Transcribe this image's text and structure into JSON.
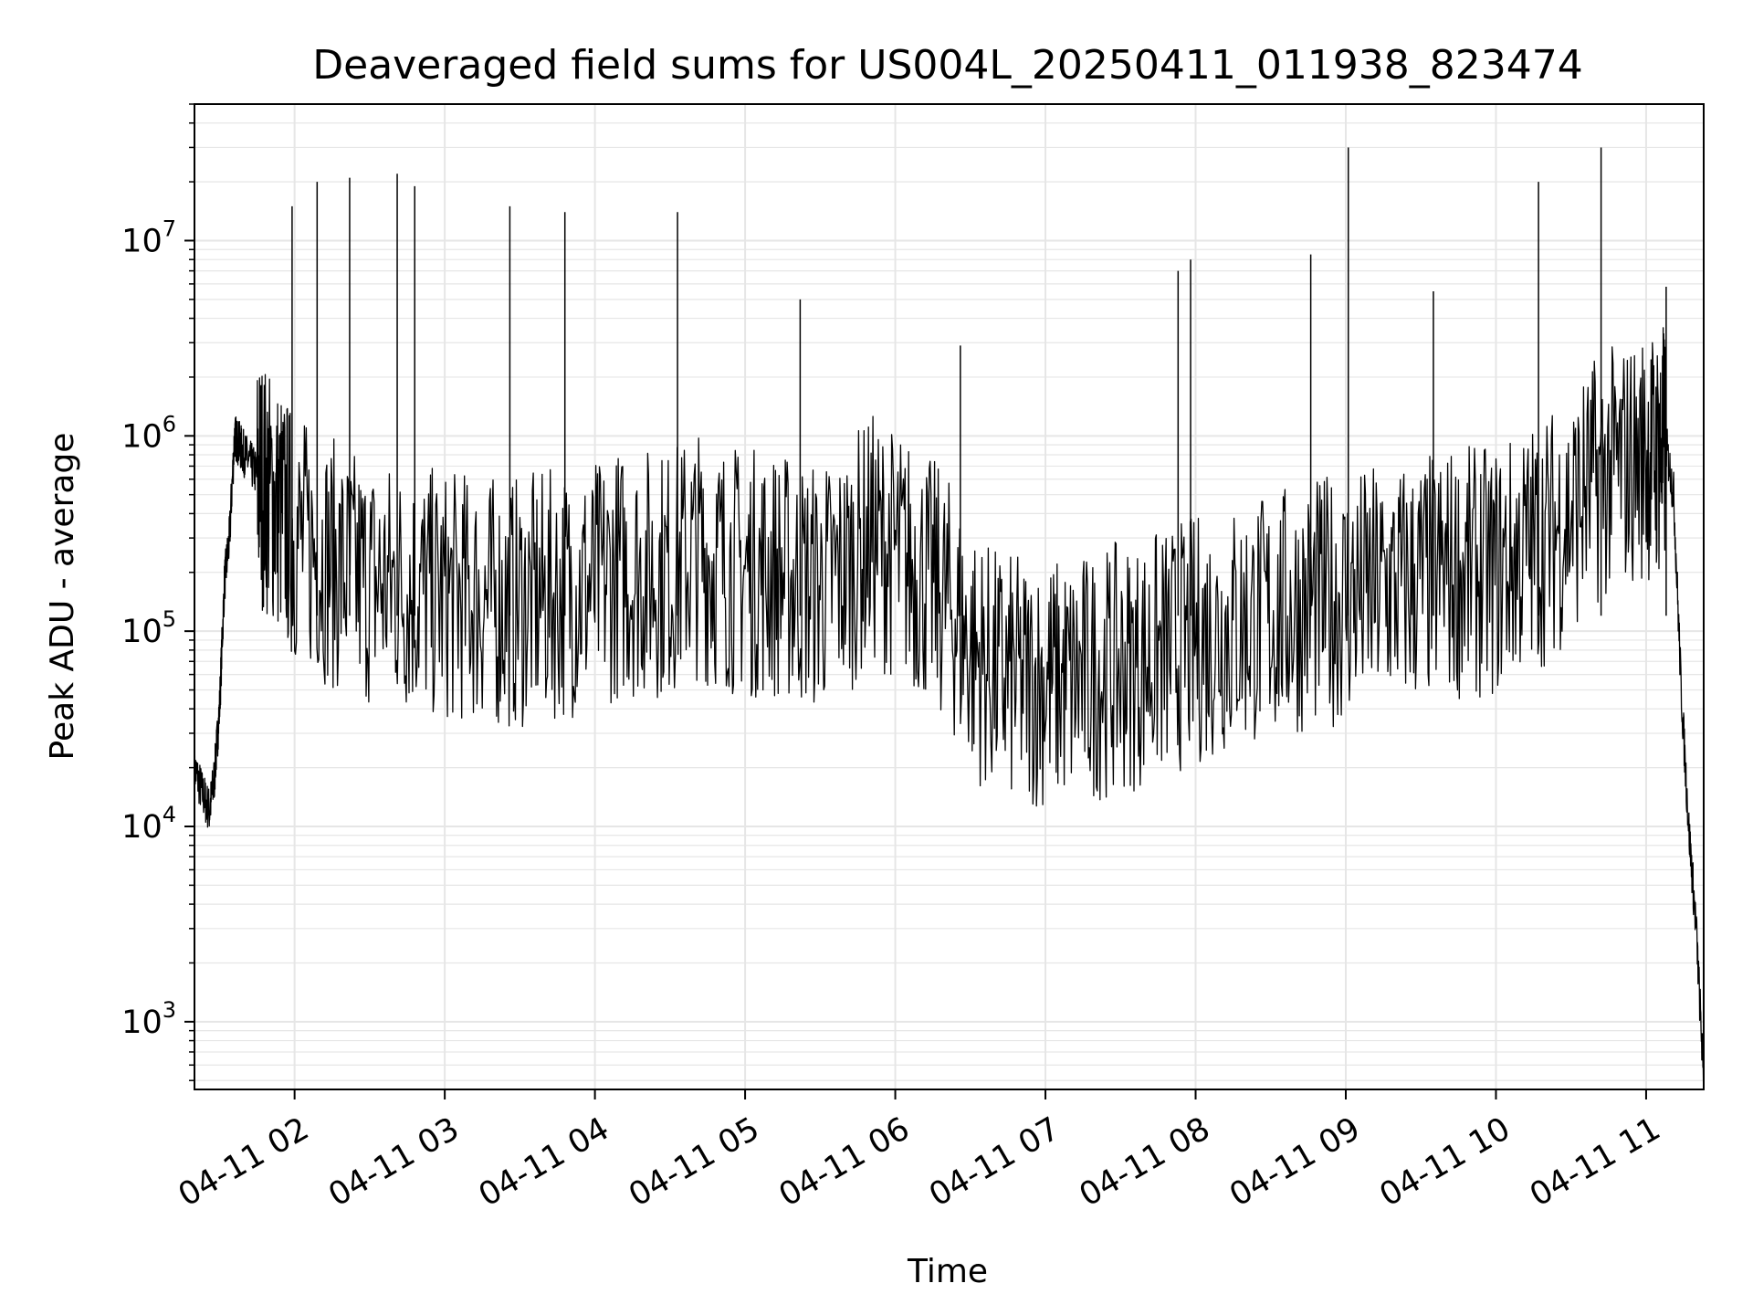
{
  "chart_data": {
    "type": "line",
    "title": "Deaveraged field sums for US004L_20250411_011938_823474",
    "xlabel": "Time",
    "ylabel": "Peak ADU - average",
    "y_scale": "log",
    "grid": true,
    "line_color": "#000000",
    "grid_color": "#e6e6e6",
    "xlim": [
      "2025-04-11T01:20",
      "2025-04-11T11:23"
    ],
    "ylim": [
      450,
      50000000
    ],
    "x_ticks": [
      {
        "value": "2025-04-11T02:00",
        "label": "04-11 02"
      },
      {
        "value": "2025-04-11T03:00",
        "label": "04-11 03"
      },
      {
        "value": "2025-04-11T04:00",
        "label": "04-11 04"
      },
      {
        "value": "2025-04-11T05:00",
        "label": "04-11 05"
      },
      {
        "value": "2025-04-11T06:00",
        "label": "04-11 06"
      },
      {
        "value": "2025-04-11T07:00",
        "label": "04-11 07"
      },
      {
        "value": "2025-04-11T08:00",
        "label": "04-11 08"
      },
      {
        "value": "2025-04-11T09:00",
        "label": "04-11 09"
      },
      {
        "value": "2025-04-11T10:00",
        "label": "04-11 10"
      },
      {
        "value": "2025-04-11T11:00",
        "label": "04-11 11"
      }
    ],
    "y_ticks": [
      {
        "value": 1000,
        "base": "10",
        "exp": "3"
      },
      {
        "value": 10000,
        "base": "10",
        "exp": "4"
      },
      {
        "value": 100000,
        "base": "10",
        "exp": "5"
      },
      {
        "value": 1000000,
        "base": "10",
        "exp": "6"
      },
      {
        "value": 10000000,
        "base": "10",
        "exp": "7"
      }
    ],
    "series": [
      {
        "x": [
          "2025-04-11T01:20",
          "2025-04-11T01:23",
          "2025-04-11T01:26",
          "2025-04-11T01:28",
          "2025-04-11T01:30",
          "2025-04-11T01:32",
          "2025-04-11T01:34",
          "2025-04-11T01:36",
          "2025-04-11T01:38",
          "2025-04-11T01:40",
          "2025-04-11T01:43",
          "2025-04-11T01:46",
          "2025-04-11T01:50",
          "2025-04-11T01:55",
          "2025-04-11T02:00",
          "2025-04-11T02:10",
          "2025-04-11T02:20",
          "2025-04-11T02:30",
          "2025-04-11T02:40",
          "2025-04-11T02:50",
          "2025-04-11T03:00",
          "2025-04-11T03:10",
          "2025-04-11T03:20",
          "2025-04-11T03:30",
          "2025-04-11T03:40",
          "2025-04-11T03:50",
          "2025-04-11T04:00",
          "2025-04-11T04:10",
          "2025-04-11T04:20",
          "2025-04-11T04:30",
          "2025-04-11T04:40",
          "2025-04-11T04:50",
          "2025-04-11T05:00",
          "2025-04-11T05:10",
          "2025-04-11T05:20",
          "2025-04-11T05:30",
          "2025-04-11T05:40",
          "2025-04-11T05:50",
          "2025-04-11T06:00",
          "2025-04-11T06:10",
          "2025-04-11T06:20",
          "2025-04-11T06:30",
          "2025-04-11T06:40",
          "2025-04-11T06:50",
          "2025-04-11T07:00",
          "2025-04-11T07:10",
          "2025-04-11T07:20",
          "2025-04-11T07:30",
          "2025-04-11T07:40",
          "2025-04-11T07:50",
          "2025-04-11T08:00",
          "2025-04-11T08:10",
          "2025-04-11T08:20",
          "2025-04-11T08:30",
          "2025-04-11T08:40",
          "2025-04-11T08:50",
          "2025-04-11T09:00",
          "2025-04-11T09:10",
          "2025-04-11T09:20",
          "2025-04-11T09:30",
          "2025-04-11T09:40",
          "2025-04-11T09:50",
          "2025-04-11T10:00",
          "2025-04-11T10:10",
          "2025-04-11T10:20",
          "2025-04-11T10:30",
          "2025-04-11T10:40",
          "2025-04-11T10:50",
          "2025-04-11T11:00",
          "2025-04-11T11:05",
          "2025-04-11T11:08",
          "2025-04-11T11:11",
          "2025-04-11T11:14",
          "2025-04-11T11:17",
          "2025-04-11T11:20",
          "2025-04-11T11:23"
        ],
        "y": [
          20000,
          15000,
          12000,
          18000,
          40000,
          180000,
          300000,
          1000000,
          900000,
          800000,
          700000,
          600000,
          500000,
          400000,
          300000,
          250000,
          200000,
          180000,
          170000,
          160000,
          150000,
          150000,
          140000,
          140000,
          150000,
          160000,
          170000,
          200000,
          200000,
          200000,
          250000,
          220000,
          200000,
          200000,
          180000,
          170000,
          200000,
          300000,
          250000,
          200000,
          150000,
          80000,
          60000,
          55000,
          55000,
          55000,
          60000,
          65000,
          70000,
          80000,
          90000,
          100000,
          110000,
          120000,
          130000,
          140000,
          150000,
          160000,
          170000,
          180000,
          200000,
          200000,
          200000,
          250000,
          300000,
          400000,
          600000,
          700000,
          800000,
          800000,
          900000,
          500000,
          50000,
          10000,
          3000,
          500
        ],
        "spikes": [
          {
            "x": "2025-04-11T01:59",
            "y": 15000000
          },
          {
            "x": "2025-04-11T02:09",
            "y": 20000000
          },
          {
            "x": "2025-04-11T02:22",
            "y": 21000000
          },
          {
            "x": "2025-04-11T02:41",
            "y": 22000000
          },
          {
            "x": "2025-04-11T02:48",
            "y": 19000000
          },
          {
            "x": "2025-04-11T03:26",
            "y": 15000000
          },
          {
            "x": "2025-04-11T03:48",
            "y": 14000000
          },
          {
            "x": "2025-04-11T04:33",
            "y": 14000000
          },
          {
            "x": "2025-04-11T05:22",
            "y": 5000000
          },
          {
            "x": "2025-04-11T06:26",
            "y": 2900000
          },
          {
            "x": "2025-04-11T07:53",
            "y": 7000000
          },
          {
            "x": "2025-04-11T07:58",
            "y": 8000000
          },
          {
            "x": "2025-04-11T08:46",
            "y": 8500000
          },
          {
            "x": "2025-04-11T09:01",
            "y": 30000000
          },
          {
            "x": "2025-04-11T09:35",
            "y": 5500000
          },
          {
            "x": "2025-04-11T10:17",
            "y": 20000000
          },
          {
            "x": "2025-04-11T10:42",
            "y": 30000000
          },
          {
            "x": "2025-04-11T11:08",
            "y": 5800000
          }
        ]
      }
    ]
  }
}
